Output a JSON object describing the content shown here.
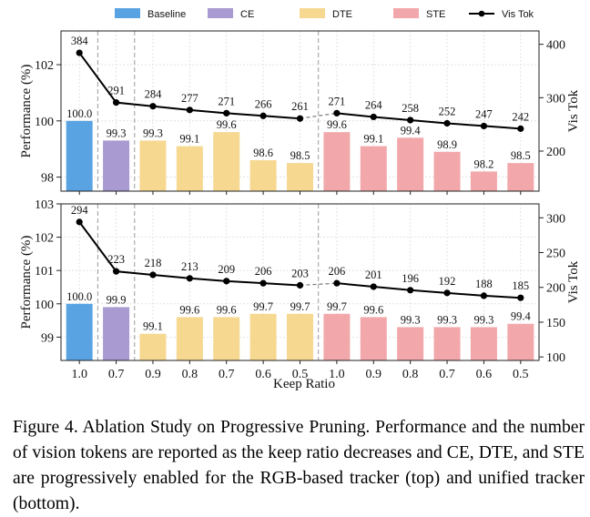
{
  "legend": [
    {
      "label": "Baseline",
      "color": "#5aa3e2",
      "kind": "bar"
    },
    {
      "label": "CE",
      "color": "#a99ad1",
      "kind": "bar"
    },
    {
      "label": "DTE",
      "color": "#f6d891",
      "kind": "bar"
    },
    {
      "label": "STE",
      "color": "#f2a8ab",
      "kind": "bar"
    },
    {
      "label": "Vis Tok",
      "color": "#000000",
      "kind": "line"
    }
  ],
  "chart_data": [
    {
      "type": "bar",
      "name": "RGB-based tracker (top)",
      "xlabel": "",
      "ylabel": "Performance (%)",
      "y2label": "Vis Tok",
      "categories": [
        "1.0",
        "0.7",
        "0.9",
        "0.8",
        "0.7",
        "0.6",
        "0.5",
        "1.0",
        "0.9",
        "0.8",
        "0.7",
        "0.6",
        "0.5"
      ],
      "groups": [
        "Baseline",
        "CE",
        "DTE",
        "DTE",
        "DTE",
        "DTE",
        "DTE",
        "STE",
        "STE",
        "STE",
        "STE",
        "STE",
        "STE"
      ],
      "values": [
        100.0,
        99.3,
        99.3,
        99.1,
        99.6,
        98.6,
        98.5,
        99.6,
        99.1,
        99.4,
        98.9,
        98.2,
        98.5
      ],
      "value_labels": [
        "100.0",
        "99.3",
        "99.3",
        "99.1",
        "99.6",
        "98.6",
        "98.5",
        "99.6",
        "99.1",
        "99.4",
        "98.9",
        "98.2",
        "98.5"
      ],
      "ylim": [
        97.5,
        103.2
      ],
      "yticks": [
        98,
        100,
        102
      ],
      "vis_tok": [
        384,
        291,
        284,
        277,
        271,
        266,
        261,
        271,
        264,
        258,
        252,
        247,
        242
      ],
      "y2lim": [
        125,
        425
      ],
      "y2ticks": [
        200,
        300,
        400
      ],
      "dashed_segment_after_index": 6,
      "separators_after_index": [
        0,
        1,
        6
      ]
    },
    {
      "type": "bar",
      "name": "unified tracker (bottom)",
      "xlabel": "Keep Ratio",
      "ylabel": "Performance (%)",
      "y2label": "Vis Tok",
      "categories": [
        "1.0",
        "0.7",
        "0.9",
        "0.8",
        "0.7",
        "0.6",
        "0.5",
        "1.0",
        "0.9",
        "0.8",
        "0.7",
        "0.6",
        "0.5"
      ],
      "groups": [
        "Baseline",
        "CE",
        "DTE",
        "DTE",
        "DTE",
        "DTE",
        "DTE",
        "STE",
        "STE",
        "STE",
        "STE",
        "STE",
        "STE"
      ],
      "values": [
        100.0,
        99.9,
        99.1,
        99.6,
        99.6,
        99.7,
        99.7,
        99.7,
        99.6,
        99.3,
        99.3,
        99.3,
        99.4
      ],
      "value_labels": [
        "100.0",
        "99.9",
        "99.1",
        "99.6",
        "99.6",
        "99.7",
        "99.7",
        "99.7",
        "99.6",
        "99.3",
        "99.3",
        "99.3",
        "99.4"
      ],
      "ylim": [
        98.3,
        103
      ],
      "yticks": [
        99,
        100,
        101,
        102,
        103
      ],
      "vis_tok": [
        294,
        223,
        218,
        213,
        209,
        206,
        203,
        206,
        201,
        196,
        192,
        188,
        185
      ],
      "y2lim": [
        95,
        320
      ],
      "y2ticks": [
        100,
        150,
        200,
        250,
        300
      ],
      "dashed_segment_after_index": 6,
      "separators_after_index": [
        0,
        1,
        6
      ]
    }
  ],
  "caption": "Figure 4.  Ablation Study on Progressive Pruning.  Performance and the number of vision tokens are reported as the keep ratio decreases and CE, DTE, and STE are progressively enabled for the RGB-based tracker (top) and unified tracker (bottom)."
}
